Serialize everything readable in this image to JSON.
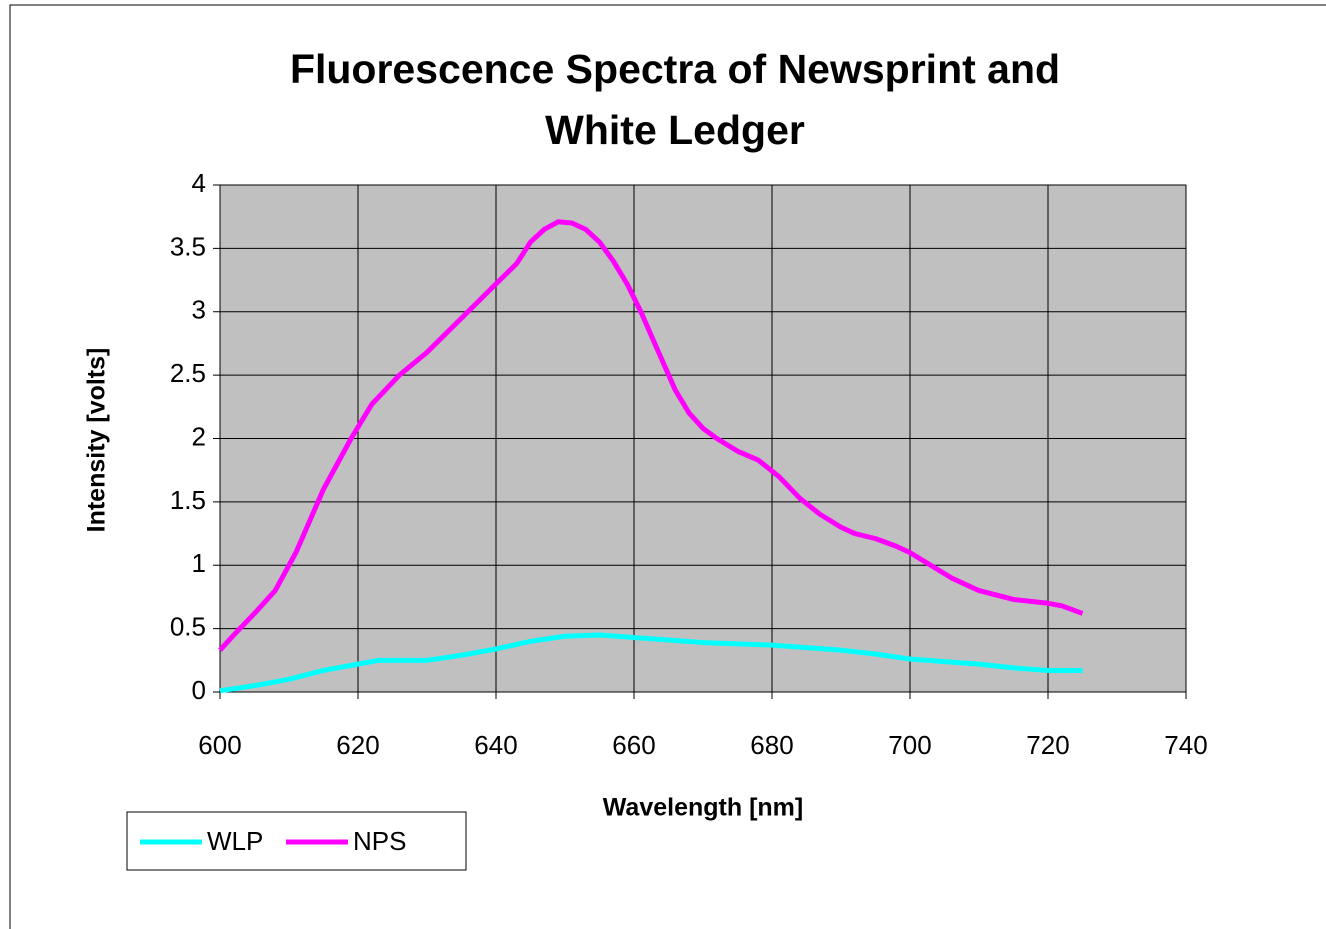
{
  "chart_data": {
    "type": "line",
    "title": [
      "Fluorescence Spectra of Newsprint and",
      "White Ledger"
    ],
    "x_label": "Wavelength [nm]",
    "y_label": "Intensity [volts]",
    "xlim": [
      600,
      740
    ],
    "xticks": [
      600,
      620,
      640,
      660,
      680,
      700,
      720,
      740
    ],
    "ylim": [
      0,
      4
    ],
    "yticks": [
      0,
      0.5,
      1,
      1.5,
      2,
      2.5,
      3,
      3.5,
      4
    ],
    "grid": true,
    "legend": "bottom-left",
    "background": "#c0c0c0",
    "series": [
      {
        "name": "WLP",
        "color": "#00ffff",
        "x": [
          600,
          605,
          610,
          615,
          620,
          623,
          630,
          635,
          640,
          645,
          650,
          655,
          660,
          665,
          670,
          675,
          680,
          685,
          690,
          695,
          700,
          705,
          710,
          715,
          720,
          725
        ],
        "values": [
          0.01,
          0.05,
          0.1,
          0.17,
          0.22,
          0.25,
          0.25,
          0.29,
          0.34,
          0.4,
          0.44,
          0.45,
          0.43,
          0.41,
          0.39,
          0.38,
          0.37,
          0.35,
          0.33,
          0.3,
          0.26,
          0.24,
          0.22,
          0.19,
          0.17,
          0.17
        ]
      },
      {
        "name": "NPS",
        "color": "#ff00ff",
        "x": [
          600,
          602,
          605,
          608,
          611,
          615,
          619,
          622,
          626,
          630,
          635,
          640,
          643,
          645,
          647,
          649,
          651,
          653,
          655,
          657,
          659,
          661,
          663,
          666,
          668,
          670,
          672,
          675,
          678,
          681,
          684,
          687,
          690,
          692,
          695,
          698,
          700,
          703,
          706,
          710,
          715,
          720,
          722,
          725
        ],
        "values": [
          0.33,
          0.45,
          0.62,
          0.8,
          1.1,
          1.6,
          2.0,
          2.27,
          2.5,
          2.68,
          2.95,
          3.22,
          3.38,
          3.55,
          3.65,
          3.71,
          3.7,
          3.65,
          3.55,
          3.4,
          3.22,
          3.0,
          2.75,
          2.38,
          2.2,
          2.08,
          2.0,
          1.9,
          1.83,
          1.7,
          1.53,
          1.4,
          1.3,
          1.25,
          1.21,
          1.15,
          1.1,
          1.0,
          0.9,
          0.8,
          0.73,
          0.7,
          0.68,
          0.62
        ]
      }
    ]
  }
}
